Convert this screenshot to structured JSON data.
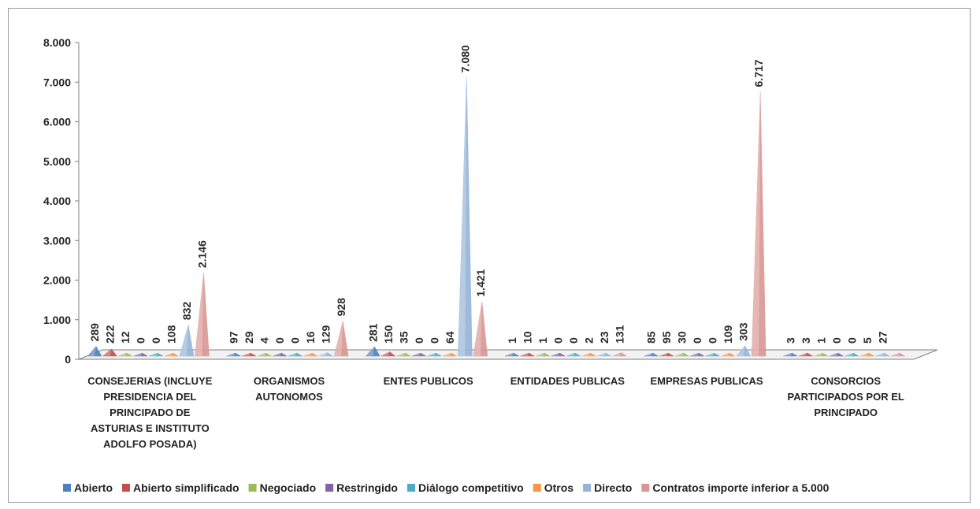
{
  "chart_data": {
    "type": "bar",
    "title": "",
    "xlabel": "",
    "ylabel": "",
    "ylim": [
      0,
      8000
    ],
    "yticks": [
      "0",
      "1.000",
      "2.000",
      "3.000",
      "4.000",
      "5.000",
      "6.000",
      "7.000",
      "8.000"
    ],
    "grid": false,
    "legend_position": "bottom",
    "categories": [
      [
        "CONSEJERIAS (INCLUYE",
        "PRESIDENCIA DEL",
        "PRINCIPADO DE",
        "ASTURIAS E INSTITUTO",
        "ADOLFO POSADA)"
      ],
      [
        "ORGANISMOS",
        "AUTONOMOS"
      ],
      [
        "ENTES PUBLICOS"
      ],
      [
        "ENTIDADES PUBLICAS"
      ],
      [
        "EMPRESAS PUBLICAS"
      ],
      [
        "CONSORCIOS",
        "PARTICIPADOS POR EL",
        "PRINCIPADO"
      ]
    ],
    "series": [
      {
        "name": "Abierto",
        "color": "#4f81bd",
        "values": [
          289,
          97,
          281,
          1,
          85,
          3
        ],
        "labels": [
          "289",
          "97",
          "281",
          "1",
          "85",
          "3"
        ]
      },
      {
        "name": "Abierto simplificado",
        "color": "#c0504d",
        "values": [
          222,
          29,
          150,
          10,
          95,
          3
        ],
        "labels": [
          "222",
          "29",
          "150",
          "10",
          "95",
          "3"
        ]
      },
      {
        "name": "Negociado",
        "color": "#9bbb59",
        "values": [
          12,
          4,
          35,
          1,
          30,
          1
        ],
        "labels": [
          "12",
          "4",
          "35",
          "1",
          "30",
          "1"
        ]
      },
      {
        "name": "Restringido",
        "color": "#8064a2",
        "values": [
          0,
          0,
          0,
          0,
          0,
          0
        ],
        "labels": [
          "0",
          "0",
          "0",
          "0",
          "0",
          "0"
        ]
      },
      {
        "name": "Diálogo competitivo",
        "color": "#4bacc6",
        "values": [
          0,
          0,
          0,
          0,
          0,
          0
        ],
        "labels": [
          "0",
          "0",
          "0",
          "0",
          "0",
          "0"
        ]
      },
      {
        "name": "Otros",
        "color": "#f79646",
        "values": [
          108,
          16,
          64,
          2,
          109,
          5
        ],
        "labels": [
          "108",
          "16",
          "64",
          "2",
          "109",
          "5"
        ]
      },
      {
        "name": "Directo",
        "color": "#95b3d7",
        "values": [
          832,
          129,
          7080,
          23,
          303,
          27
        ],
        "labels": [
          "832",
          "129",
          "7.080",
          "23",
          "303",
          "27"
        ]
      },
      {
        "name": "Contratos importe inferior a 5.000",
        "color": "#d99694",
        "values": [
          2146,
          928,
          1421,
          131,
          6717,
          0
        ],
        "labels": [
          "2.146",
          "928",
          "1.421",
          "131",
          "6.717",
          ""
        ]
      }
    ]
  }
}
